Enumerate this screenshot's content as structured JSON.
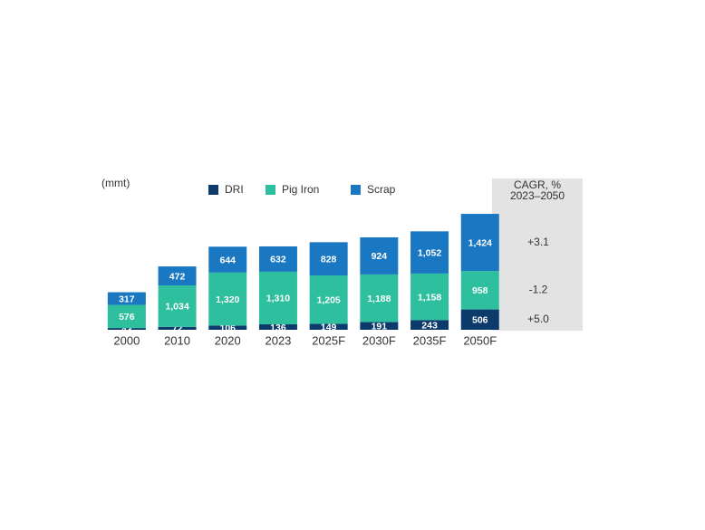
{
  "chart_data": {
    "type": "stacked-bar",
    "unit_label": "(mmt)",
    "categories": [
      "2000",
      "2010",
      "2020",
      "2023",
      "2025F",
      "2030F",
      "2035F",
      "2050F"
    ],
    "series": [
      {
        "name": "DRI",
        "color": "#0b3a6b",
        "values": [
          43,
          72,
          106,
          136,
          149,
          191,
          243,
          506
        ],
        "cagr": 5.0,
        "cagr_label": "+5.0"
      },
      {
        "name": "Pig Iron",
        "color": "#2ebf9f",
        "values": [
          576,
          1034,
          1320,
          1310,
          1205,
          1188,
          1158,
          958
        ],
        "value_labels": [
          "576",
          "1,034",
          "1,320",
          "1,310",
          "1,205",
          "1,188",
          "1,158",
          "958"
        ],
        "cagr": -1.2
      },
      {
        "name": "Scrap",
        "color": "#1a78c2",
        "values": [
          317,
          472,
          644,
          632,
          828,
          924,
          1052,
          1424
        ],
        "value_labels": [
          "317",
          "472",
          "644",
          "632",
          "828",
          "924",
          "1,052",
          "1,424"
        ],
        "cagr": 3.1,
        "cagr_label": "+3.1"
      }
    ],
    "cagr_title": "CAGR, %",
    "cagr_period": "2023–2050"
  }
}
